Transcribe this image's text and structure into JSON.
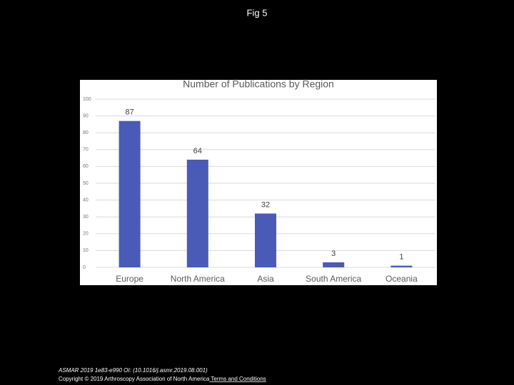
{
  "slide": {
    "title": "Fig 5",
    "citation": "ASMAR 2019 1e83-e990 OI: (10.1016/j.asmr.2019.08.001)",
    "copyright": "Copyright © 2019 Arthroscopy Association of North America",
    "link": " Terms and Conditions"
  },
  "chart_data": {
    "type": "bar",
    "title": "Number of Publications by Region",
    "categories": [
      "Europe",
      "North America",
      "Asia",
      "South America",
      "Oceania"
    ],
    "values": [
      87,
      64,
      32,
      3,
      1
    ],
    "color": "#4a5ab7",
    "ylim": [
      0,
      100
    ],
    "yticks": [
      0,
      10,
      20,
      30,
      40,
      50,
      60,
      70,
      80,
      90,
      100
    ],
    "grid": true
  }
}
